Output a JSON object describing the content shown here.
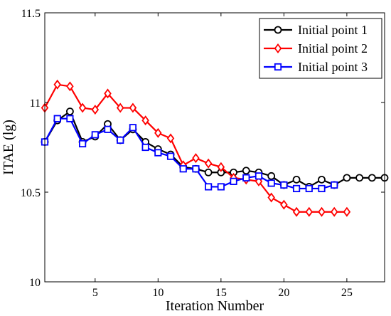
{
  "chart_data": {
    "type": "line",
    "title": "",
    "xlabel": "Iteration Number",
    "ylabel": "ITAE (lg)",
    "xlim": [
      1,
      28
    ],
    "ylim": [
      10,
      11.5
    ],
    "xticks": [
      5,
      10,
      15,
      20,
      25
    ],
    "xtick_labels": [
      "5",
      "10",
      "15",
      "20",
      "25"
    ],
    "yticks": [
      10,
      10.5,
      11,
      11.5
    ],
    "ytick_labels": [
      "10",
      "10.5",
      "11",
      "11.5"
    ],
    "grid": false,
    "legend_position": "top-right",
    "series": [
      {
        "name": "Initial point 1",
        "color": "#000000",
        "marker": "circle",
        "x": [
          1,
          2,
          3,
          4,
          5,
          6,
          7,
          8,
          9,
          10,
          11,
          12,
          13,
          14,
          15,
          16,
          17,
          18,
          19,
          20,
          21,
          22,
          23,
          24,
          25,
          26,
          27,
          28
        ],
        "values": [
          10.78,
          10.9,
          10.95,
          10.78,
          10.81,
          10.88,
          10.79,
          10.85,
          10.78,
          10.74,
          10.71,
          10.64,
          10.63,
          10.61,
          10.61,
          10.61,
          10.62,
          10.61,
          10.59,
          10.54,
          10.57,
          10.53,
          10.57,
          10.54,
          10.58,
          10.58,
          10.58,
          10.58
        ]
      },
      {
        "name": "Initial point 2",
        "color": "#ff0000",
        "marker": "diamond",
        "x": [
          1,
          2,
          3,
          4,
          5,
          6,
          7,
          8,
          9,
          10,
          11,
          12,
          13,
          14,
          15,
          16,
          17,
          18,
          19,
          20,
          21,
          22,
          23,
          24,
          25
        ],
        "values": [
          10.97,
          11.1,
          11.09,
          10.97,
          10.96,
          11.05,
          10.97,
          10.97,
          10.9,
          10.83,
          10.8,
          10.65,
          10.69,
          10.66,
          10.64,
          10.58,
          10.57,
          10.56,
          10.47,
          10.43,
          10.39,
          10.39,
          10.39,
          10.39,
          10.39
        ]
      },
      {
        "name": "Initial point 3",
        "color": "#0000ff",
        "marker": "square",
        "x": [
          1,
          2,
          3,
          4,
          5,
          6,
          7,
          8,
          9,
          10,
          11,
          12,
          13,
          14,
          15,
          16,
          17,
          18,
          19,
          20,
          21,
          22,
          23,
          24
        ],
        "values": [
          10.78,
          10.91,
          10.91,
          10.77,
          10.82,
          10.85,
          10.79,
          10.86,
          10.75,
          10.72,
          10.7,
          10.63,
          10.63,
          10.53,
          10.53,
          10.56,
          10.58,
          10.59,
          10.55,
          10.54,
          10.52,
          10.52,
          10.52,
          10.54
        ]
      }
    ]
  }
}
